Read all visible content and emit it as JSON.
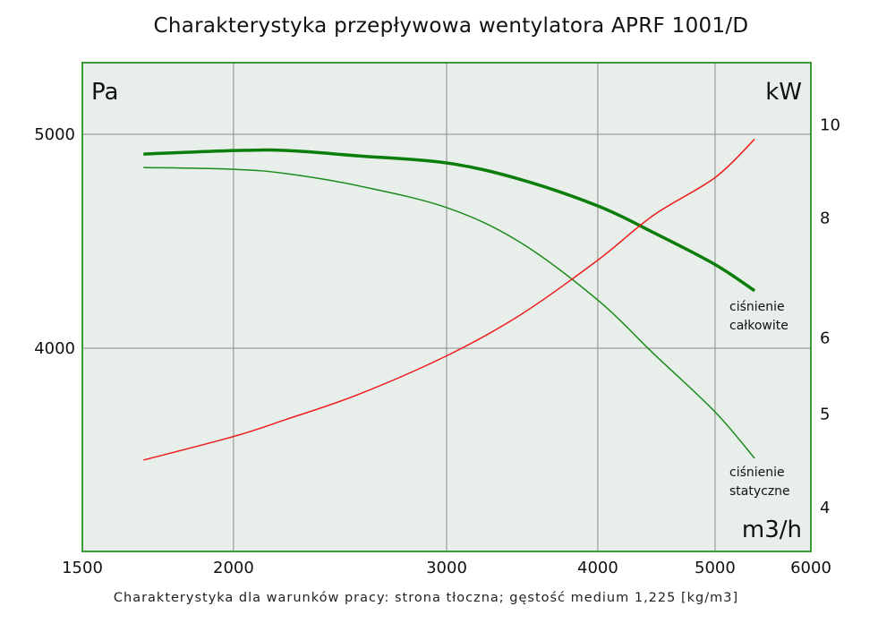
{
  "chart_data": {
    "type": "line",
    "title": "Charakterystyka przepływowa wentylatora APRF 1001/D",
    "footnote": "Charakterystyka dla warunków pracy: strona tłoczna; gęstość medium 1,225 [kg/m3]",
    "xlabel": "m3/h",
    "ylabel_left": "Pa",
    "ylabel_right": "kW",
    "x_scale": "log",
    "y_scale": "log",
    "xlim": [
      1500,
      6000
    ],
    "ylim_left": [
      3236,
      5388
    ],
    "ylim_right": [
      3.6,
      11.6
    ],
    "x_ticks": [
      1500,
      2000,
      3000,
      4000,
      5000,
      6000
    ],
    "y_ticks_left": [
      4000,
      5000
    ],
    "y_ticks_right": [
      4,
      5,
      6,
      8,
      10
    ],
    "grid": true,
    "colors": {
      "total": "#0a7d0a",
      "static": "#1a8a1a",
      "power": "#ee1c1c",
      "border": "#3a9a3a",
      "plot_bg": "#e8eee9",
      "grid": "#8c8c8c"
    },
    "x": [
      1685,
      2000,
      2213,
      2534,
      3000,
      3444,
      4000,
      4447,
      5000,
      5391
    ],
    "series": [
      {
        "name": "ciśnienie całkowite",
        "label_lines": [
          "ciśnienie",
          "całkowite"
        ],
        "axis": "left",
        "values": [
          4898,
          4916,
          4916,
          4889,
          4853,
          4772,
          4640,
          4513,
          4365,
          4247
        ]
      },
      {
        "name": "ciśnienie statyczne",
        "label_lines": [
          "ciśnienie",
          "statyczne"
        ],
        "axis": "left",
        "values": [
          4830,
          4821,
          4799,
          4739,
          4632,
          4470,
          4206,
          3978,
          3743,
          3566
        ]
      },
      {
        "name": "moc",
        "axis": "right",
        "values": [
          4.48,
          4.74,
          4.94,
          5.24,
          5.75,
          6.33,
          7.23,
          8.05,
          8.81,
          9.66
        ]
      }
    ]
  }
}
